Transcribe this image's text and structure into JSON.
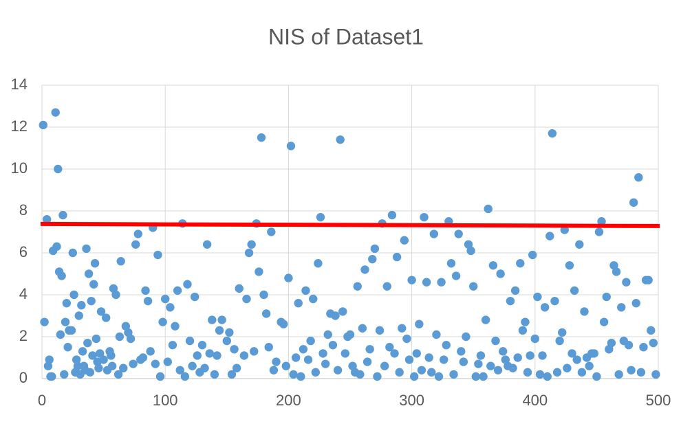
{
  "chart_data": {
    "type": "scatter",
    "title": "NIS of Dataset1",
    "x": [
      1,
      2,
      4,
      6,
      7,
      9,
      11,
      12,
      13,
      14,
      16,
      17,
      18,
      19,
      20,
      22,
      25,
      26,
      28,
      30,
      32,
      34,
      36,
      38,
      40,
      42,
      43,
      44,
      48,
      52,
      56,
      58,
      60,
      64,
      68,
      70,
      76,
      78,
      82,
      84,
      86,
      90,
      94,
      100,
      104,
      110,
      114,
      118,
      120,
      124,
      130,
      134,
      138,
      146,
      152,
      160,
      166,
      168,
      170,
      174,
      176,
      178,
      180,
      182,
      186,
      194,
      200,
      202,
      208,
      214,
      220,
      224,
      226,
      234,
      238,
      242,
      244,
      250,
      256,
      262,
      268,
      270,
      276,
      280,
      284,
      288,
      292,
      294,
      300,
      306,
      310,
      312,
      318,
      324,
      330,
      332,
      336,
      338,
      346,
      348,
      350,
      360,
      362,
      366,
      372,
      380,
      384,
      388,
      392,
      398,
      402,
      408,
      412,
      414,
      416,
      420,
      424,
      428,
      432,
      436,
      440,
      446,
      452,
      454,
      458,
      462,
      464,
      466,
      470,
      474,
      480,
      482,
      484,
      490,
      492,
      494,
      496,
      5,
      8,
      15,
      21,
      24,
      27,
      29,
      31,
      33,
      35,
      37,
      39,
      41,
      45,
      46,
      47,
      50,
      53,
      55,
      57,
      62,
      63,
      66,
      72,
      74,
      80,
      88,
      92,
      96,
      98,
      102,
      106,
      108,
      112,
      116,
      122,
      126,
      128,
      132,
      136,
      140,
      142,
      144,
      150,
      154,
      156,
      158,
      164,
      172,
      184,
      188,
      190,
      196,
      198,
      204,
      206,
      210,
      212,
      216,
      218,
      222,
      228,
      230,
      232,
      236,
      240,
      246,
      248,
      252,
      254,
      258,
      260,
      264,
      266,
      272,
      274,
      278,
      282,
      286,
      290,
      296,
      298,
      302,
      304,
      308,
      314,
      316,
      320,
      322,
      326,
      328,
      334,
      340,
      342,
      344,
      352,
      354,
      356,
      358,
      364,
      368,
      370,
      374,
      376,
      378,
      382,
      386,
      390,
      394,
      396,
      400,
      404,
      406,
      410,
      418,
      422,
      426,
      430,
      434,
      438,
      442,
      444,
      448,
      450,
      456,
      460,
      468,
      472,
      476,
      478,
      486,
      488,
      498
    ],
    "values": [
      12.1,
      2.7,
      7.6,
      0.9,
      0.1,
      6.1,
      12.7,
      6.3,
      10,
      5.1,
      4.9,
      7.8,
      0.2,
      2.7,
      3.6,
      2.3,
      6,
      4,
      0.9,
      3,
      3.5,
      0.6,
      6.2,
      5,
      3.7,
      4.5,
      5.5,
      1.9,
      3.2,
      2.9,
      1.1,
      4.3,
      4.0,
      5.6,
      2.5,
      2.2,
      6.4,
      6.9,
      1.0,
      4.2,
      3.7,
      7.2,
      5.9,
      3.8,
      3.4,
      4.2,
      7.4,
      4.5,
      1.8,
      3.9,
      1.6,
      6.4,
      2.8,
      2.8,
      2.2,
      4.3,
      3.8,
      6.0,
      6.4,
      7.4,
      5.1,
      11.5,
      4.0,
      3.1,
      7.0,
      2.7,
      4.8,
      11.1,
      3.6,
      4.2,
      3.8,
      5.5,
      7.7,
      3.1,
      3.0,
      11.4,
      3.2,
      2.1,
      4.4,
      5.2,
      5.7,
      6.2,
      7.4,
      4.4,
      7.8,
      5.8,
      2.4,
      6.6,
      4.7,
      2.6,
      7.7,
      4.6,
      6.9,
      4.6,
      7.5,
      5.5,
      4.9,
      6.9,
      6.4,
      6.1,
      4.4,
      2.8,
      8.1,
      5.4,
      5.0,
      3.7,
      4.2,
      5.5,
      2.7,
      5.9,
      3.9,
      3.4,
      6.8,
      11.7,
      3.7,
      1.8,
      7.1,
      5.4,
      4.2,
      6.4,
      3.2,
      1.2,
      7.0,
      7.5,
      3.9,
      1.7,
      5.4,
      5.1,
      3.4,
      4.6,
      8.4,
      3.6,
      9.6,
      4.7,
      4.7,
      2.3,
      1.7,
      0.6,
      0.1,
      2.1,
      1.5,
      2.3,
      0.3,
      0.6,
      0.2,
      1.3,
      0.4,
      1.7,
      0.3,
      1.1,
      0.8,
      0.5,
      1.2,
      0.9,
      0.4,
      1.3,
      0.6,
      0.2,
      2.0,
      0.5,
      1.9,
      0.7,
      0.9,
      1.3,
      0.7,
      0.1,
      2.7,
      0.8,
      1.6,
      2.5,
      0.4,
      0.1,
      0.6,
      1.1,
      0.3,
      0.5,
      1.2,
      0.2,
      1.1,
      2.3,
      1.8,
      0.2,
      1.4,
      0.5,
      1.1,
      1.3,
      1.5,
      0.4,
      0.8,
      2.6,
      0.6,
      0.2,
      1.0,
      0.1,
      1.4,
      0.9,
      1.8,
      0.3,
      1.2,
      0.7,
      2.1,
      1.6,
      0.4,
      1.2,
      2.0,
      0.6,
      0.3,
      0.2,
      2.4,
      0.8,
      1.4,
      0.1,
      2.3,
      0.6,
      1.5,
      1.2,
      0.3,
      1.9,
      0.9,
      0.1,
      1.2,
      0.4,
      1.0,
      0.3,
      2.1,
      0.1,
      0.9,
      1.6,
      0.2,
      1.3,
      0.8,
      2.0,
      0.1,
      0.7,
      1.1,
      0.1,
      0.6,
      1.8,
      0.4,
      1.3,
      0.9,
      0.6,
      0.5,
      1.0,
      2.3,
      0.3,
      1.1,
      1.9,
      0.2,
      1.1,
      0.1,
      0.3,
      2.2,
      0.5,
      1.2,
      0.9,
      0.3,
      1.0,
      0.6,
      1.2,
      0.1,
      2.7,
      1.4,
      0.2,
      1.8,
      1.6,
      0.4,
      0.3,
      1.5,
      0.2
    ],
    "color": "#5b9bd5",
    "reference_line": {
      "value": 7.33,
      "color": "#ff0000"
    },
    "xlim": [
      0,
      500
    ],
    "xticks": [
      0,
      100,
      200,
      300,
      400,
      500
    ],
    "ylim": [
      0,
      14
    ],
    "yticks": [
      0,
      2,
      4,
      6,
      8,
      10,
      12,
      14
    ],
    "grid": true
  }
}
